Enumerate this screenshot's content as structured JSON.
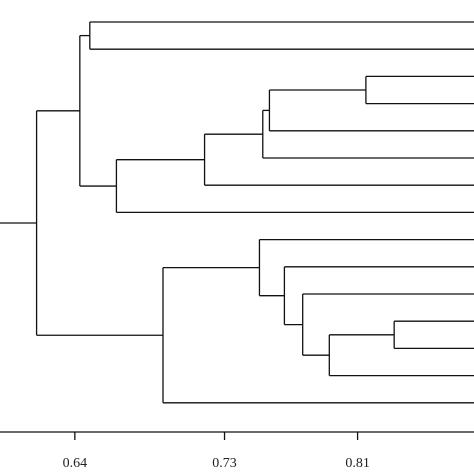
{
  "chart_data": {
    "type": "dendrogram",
    "categories": [
      null,
      null,
      null,
      null,
      null,
      null,
      null,
      null,
      null,
      null,
      null,
      null,
      null,
      null,
      null
    ],
    "merges": [
      {
        "children": [
          2,
          3
        ],
        "height": 0.815
      },
      {
        "children": [
          15,
          4
        ],
        "height": 0.757
      },
      {
        "children": [
          16,
          5
        ],
        "height": 0.753
      },
      {
        "children": [
          17,
          6
        ],
        "height": 0.718
      },
      {
        "children": [
          18,
          7
        ],
        "height": 0.665
      },
      {
        "children": [
          0,
          1
        ],
        "height": 0.649
      },
      {
        "children": [
          20,
          19
        ],
        "height": 0.643
      },
      {
        "children": [
          11,
          12
        ],
        "height": 0.832
      },
      {
        "children": [
          22,
          13
        ],
        "height": 0.793
      },
      {
        "children": [
          10,
          23
        ],
        "height": 0.777
      },
      {
        "children": [
          9,
          24
        ],
        "height": 0.766
      },
      {
        "children": [
          8,
          25
        ],
        "height": 0.751
      },
      {
        "children": [
          26,
          14
        ],
        "height": 0.693
      },
      {
        "children": [
          21,
          27
        ],
        "height": 0.617
      }
    ],
    "xlim": [
      0.595,
      0.88
    ],
    "xticks": [
      0.64,
      0.73,
      0.81
    ],
    "color": "#111111"
  }
}
